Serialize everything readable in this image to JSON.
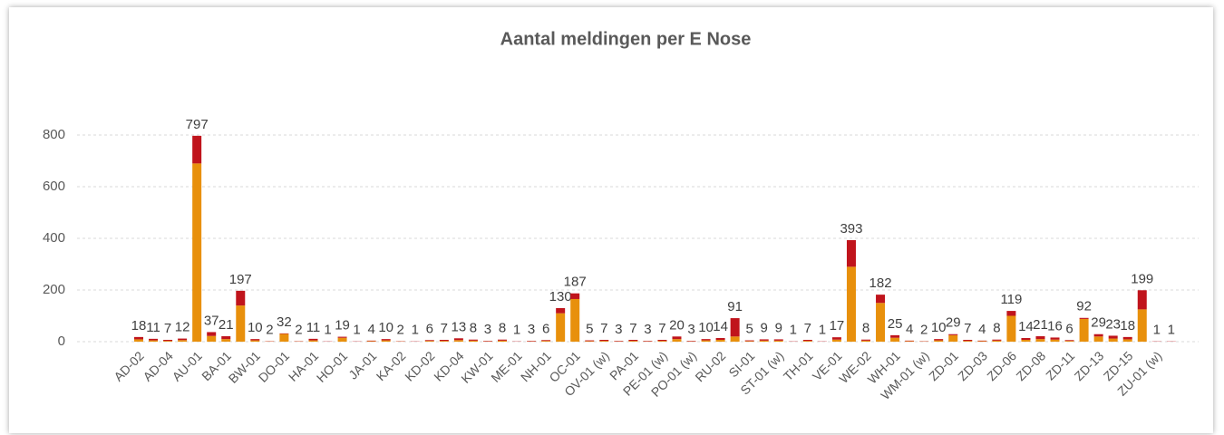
{
  "chart_data": {
    "type": "stacked_bar",
    "title": "Aantal meldingen per E Nose",
    "categories": [
      "AD-02",
      null,
      "AD-04",
      null,
      "AU-01",
      null,
      "BA-01",
      null,
      "BW-01",
      null,
      "DO-01",
      null,
      "HA-01",
      null,
      "HO-01",
      null,
      "JA-01",
      null,
      "KA-02",
      null,
      "KD-02",
      null,
      "KD-04",
      null,
      "KW-01",
      null,
      "ME-01",
      null,
      "NH-01",
      null,
      "OC-01",
      null,
      "OV-01 (w)",
      null,
      "PA-01",
      null,
      "PE-01 (w)",
      null,
      "PO-01 (w)",
      null,
      "RU-02",
      null,
      "SI-01",
      null,
      "ST-01 (w)",
      null,
      "TH-01",
      null,
      "VE-01",
      null,
      "WE-02",
      null,
      "WH-01",
      null,
      "WM-01 (w)",
      null,
      "ZD-01",
      null,
      "ZD-03",
      null,
      "ZD-06",
      null,
      "ZD-08",
      null,
      "ZD-11",
      null,
      "ZD-13",
      null,
      "ZD-15",
      null,
      "ZU-01 (w)",
      null
    ],
    "series": [
      {
        "color": "#e8900c",
        "values": [
          9,
          5,
          3,
          6,
          690,
          22,
          10,
          140,
          5,
          1,
          30,
          1,
          5,
          0,
          15,
          0,
          2,
          5,
          1,
          0,
          3,
          3,
          6,
          4,
          1,
          4,
          0,
          1,
          3,
          110,
          165,
          2,
          3,
          1,
          3,
          1,
          3,
          10,
          1,
          5,
          7,
          20,
          2,
          4,
          4,
          0,
          3,
          0,
          8,
          290,
          4,
          150,
          15,
          2,
          1,
          5,
          25,
          3,
          2,
          4,
          100,
          7,
          10,
          8,
          3,
          88,
          20,
          12,
          9,
          125,
          0,
          0
        ]
      },
      {
        "color": "#c0141c",
        "values": [
          9,
          6,
          4,
          6,
          107,
          15,
          11,
          57,
          5,
          1,
          2,
          1,
          6,
          1,
          4,
          1,
          2,
          5,
          1,
          1,
          3,
          4,
          7,
          4,
          2,
          4,
          1,
          2,
          3,
          20,
          22,
          3,
          4,
          2,
          4,
          2,
          4,
          10,
          2,
          5,
          7,
          71,
          3,
          5,
          5,
          1,
          4,
          1,
          9,
          103,
          4,
          32,
          10,
          2,
          1,
          5,
          4,
          4,
          2,
          4,
          19,
          7,
          11,
          8,
          3,
          4,
          9,
          11,
          9,
          74,
          1,
          1
        ]
      }
    ],
    "totals": [
      18,
      11,
      7,
      12,
      797,
      37,
      21,
      197,
      10,
      2,
      32,
      2,
      11,
      1,
      19,
      1,
      4,
      10,
      2,
      1,
      6,
      7,
      13,
      8,
      3,
      8,
      1,
      3,
      6,
      130,
      187,
      5,
      7,
      3,
      7,
      3,
      7,
      20,
      3,
      10,
      14,
      91,
      5,
      9,
      9,
      1,
      7,
      1,
      17,
      393,
      8,
      182,
      25,
      4,
      2,
      10,
      29,
      7,
      4,
      8,
      119,
      14,
      21,
      16,
      6,
      92,
      29,
      23,
      18,
      199,
      1,
      1
    ],
    "ylim": [
      0,
      800
    ],
    "yticks": [
      0,
      200,
      400,
      600,
      800
    ],
    "grid": true
  }
}
